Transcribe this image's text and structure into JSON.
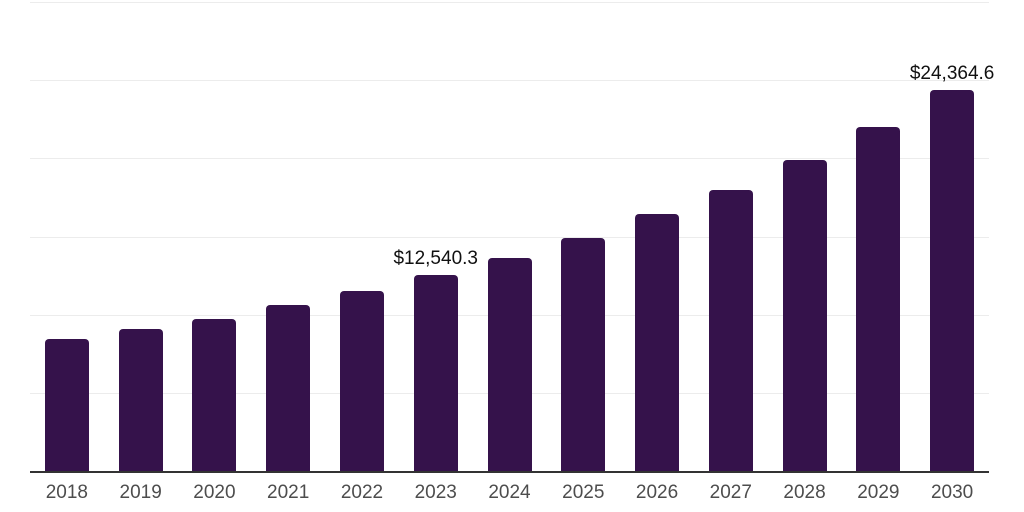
{
  "chart_data": {
    "type": "bar",
    "title": "",
    "xlabel": "",
    "ylabel": "",
    "categories": [
      "2018",
      "2019",
      "2020",
      "2021",
      "2022",
      "2023",
      "2024",
      "2025",
      "2026",
      "2027",
      "2028",
      "2029",
      "2030"
    ],
    "values": [
      8430,
      9090,
      9730,
      10620,
      11530,
      12540.3,
      13630,
      14920,
      16430,
      17960,
      19890,
      22020,
      24364.6
    ],
    "data_labels": [
      {
        "category": "2023",
        "text": "$12,540.3"
      },
      {
        "category": "2030",
        "text": "$24,364.6"
      }
    ],
    "ylim": [
      0,
      30000
    ],
    "grid_step": 5000,
    "grid": "horizontal-only",
    "y_tick_labels_visible": false,
    "legend": "none",
    "colors": {
      "bar": "#35124B",
      "grid": "#ececec",
      "axis": "#333333",
      "tick_text": "#4d4d4d",
      "label_text": "#111111",
      "background": "#ffffff"
    }
  }
}
